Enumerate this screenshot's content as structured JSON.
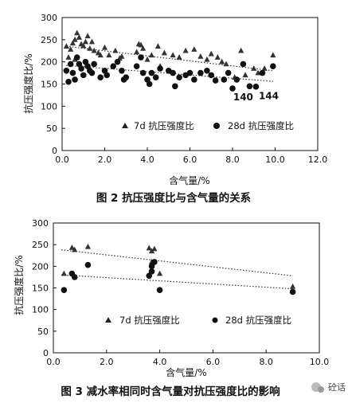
{
  "figure1": {
    "caption": "图 2   抗压强度比与含气量的关系",
    "chart_data": {
      "type": "scatter",
      "title": "",
      "xlabel": "含气量/%",
      "ylabel": "抗压强度比/%",
      "xlim": [
        0,
        12
      ],
      "ylim": [
        0,
        300
      ],
      "x_ticks": [
        "0.0",
        "2.0",
        "4.0",
        "6.0",
        "8.0",
        "10.0",
        "12.0"
      ],
      "y_ticks": [
        "0",
        "50",
        "100",
        "150",
        "200",
        "250",
        "300"
      ],
      "grid": false,
      "legend_position": "bottom-center",
      "series": [
        {
          "name": "7d 抗压强度比",
          "marker": "triangle",
          "points": [
            [
              0.2,
              235
            ],
            [
              0.4,
              228
            ],
            [
              0.5,
              242
            ],
            [
              0.6,
              250
            ],
            [
              0.7,
              265
            ],
            [
              0.8,
              255
            ],
            [
              0.9,
              240
            ],
            [
              1.0,
              236
            ],
            [
              1.1,
              245
            ],
            [
              1.2,
              258
            ],
            [
              1.3,
              230
            ],
            [
              1.4,
              245
            ],
            [
              1.5,
              225
            ],
            [
              1.7,
              220
            ],
            [
              2.0,
              232
            ],
            [
              2.2,
              215
            ],
            [
              2.5,
              225
            ],
            [
              2.7,
              208
            ],
            [
              2.8,
              212
            ],
            [
              3.5,
              222
            ],
            [
              3.6,
              240
            ],
            [
              3.7,
              238
            ],
            [
              3.8,
              230
            ],
            [
              4.0,
              205
            ],
            [
              4.2,
              215
            ],
            [
              4.5,
              235
            ],
            [
              4.8,
              220
            ],
            [
              5.2,
              215
            ],
            [
              5.5,
              210
            ],
            [
              5.8,
              225
            ],
            [
              6.2,
              228
            ],
            [
              6.5,
              212
            ],
            [
              6.8,
              205
            ],
            [
              7.0,
              218
            ],
            [
              7.3,
              210
            ],
            [
              7.5,
              200
            ],
            [
              7.7,
              195
            ],
            [
              8.1,
              165
            ],
            [
              8.4,
              225
            ],
            [
              8.6,
              170
            ],
            [
              9.0,
              185
            ],
            [
              9.2,
              175
            ],
            [
              9.5,
              185
            ],
            [
              9.9,
              215
            ],
            [
              0.3,
              210
            ],
            [
              0.6,
              205
            ],
            [
              1.8,
              215
            ],
            [
              4.6,
              190
            ]
          ]
        },
        {
          "name": "28d 抗压强度比",
          "marker": "circle",
          "points": [
            [
              0.2,
              180
            ],
            [
              0.3,
              155
            ],
            [
              0.4,
              195
            ],
            [
              0.5,
              175
            ],
            [
              0.6,
              160
            ],
            [
              0.7,
              210
            ],
            [
              0.8,
              195
            ],
            [
              0.9,
              185
            ],
            [
              1.0,
              170
            ],
            [
              1.1,
              200
            ],
            [
              1.2,
              190
            ],
            [
              1.3,
              180
            ],
            [
              1.4,
              175
            ],
            [
              1.5,
              195
            ],
            [
              1.8,
              165
            ],
            [
              2.0,
              180
            ],
            [
              2.1,
              170
            ],
            [
              2.4,
              190
            ],
            [
              2.6,
              200
            ],
            [
              2.8,
              180
            ],
            [
              3.0,
              165
            ],
            [
              3.5,
              190
            ],
            [
              3.7,
              210
            ],
            [
              3.8,
              175
            ],
            [
              4.0,
              160
            ],
            [
              4.2,
              175
            ],
            [
              4.4,
              165
            ],
            [
              4.6,
              185
            ],
            [
              5.0,
              180
            ],
            [
              5.2,
              175
            ],
            [
              5.5,
              165
            ],
            [
              5.8,
              170
            ],
            [
              6.0,
              175
            ],
            [
              6.2,
              160
            ],
            [
              6.5,
              175
            ],
            [
              6.8,
              180
            ],
            [
              7.0,
              170
            ],
            [
              7.2,
              158
            ],
            [
              7.6,
              160
            ],
            [
              7.8,
              175
            ],
            [
              8.0,
              140
            ],
            [
              8.2,
              160
            ],
            [
              8.5,
              195
            ],
            [
              8.8,
              145
            ],
            [
              9.1,
              144
            ],
            [
              9.4,
              175
            ],
            [
              9.9,
              190
            ],
            [
              4.1,
              150
            ],
            [
              5.3,
              145
            ],
            [
              2.9,
              160
            ]
          ]
        }
      ],
      "trendlines": [
        {
          "series": "7d 抗压强度比",
          "from": [
            0.2,
            235
          ],
          "to": [
            9.9,
            180
          ]
        },
        {
          "series": "28d 抗压强度比",
          "from": [
            0.2,
            192
          ],
          "to": [
            9.9,
            156
          ]
        }
      ],
      "annotations": [
        {
          "text": "140",
          "x": 8.5,
          "y": 135
        },
        {
          "text": "144",
          "x": 9.7,
          "y": 137
        }
      ]
    }
  },
  "figure2": {
    "caption": "图 3   减水率相同时含气量对抗压强度比的影响",
    "chart_data": {
      "type": "scatter",
      "title": "",
      "xlabel": "含气量/%",
      "ylabel": "抗压强度比/%",
      "xlim": [
        0,
        10
      ],
      "ylim": [
        0,
        300
      ],
      "x_ticks": [
        "0.0",
        "2.0",
        "4.0",
        "6.0",
        "8.0",
        "10.0"
      ],
      "y_ticks": [
        "0",
        "50",
        "100",
        "150",
        "200",
        "250",
        "300"
      ],
      "grid": false,
      "legend_position": "bottom-center",
      "series": [
        {
          "name": "7d 抗压强度比",
          "marker": "triangle",
          "points": [
            [
              0.4,
              183
            ],
            [
              0.7,
              243
            ],
            [
              0.8,
              238
            ],
            [
              1.3,
              245
            ],
            [
              3.6,
              242
            ],
            [
              3.7,
              235
            ],
            [
              3.8,
              240
            ],
            [
              3.7,
              210
            ],
            [
              4.0,
              183
            ],
            [
              9.0,
              153
            ]
          ]
        },
        {
          "name": "28d 抗压强度比",
          "marker": "circle",
          "points": [
            [
              0.4,
              145
            ],
            [
              0.7,
              183
            ],
            [
              0.8,
              175
            ],
            [
              1.3,
              203
            ],
            [
              3.6,
              178
            ],
            [
              3.7,
              200
            ],
            [
              3.8,
              210
            ],
            [
              3.7,
              188
            ],
            [
              4.0,
              145
            ],
            [
              9.0,
              141
            ]
          ]
        }
      ],
      "trendlines": [
        {
          "series": "7d 抗压强度比",
          "from": [
            0.3,
            238
          ],
          "to": [
            9.0,
            178
          ]
        },
        {
          "series": "28d 抗压强度比",
          "from": [
            0.3,
            180
          ],
          "to": [
            9.0,
            148
          ]
        }
      ]
    }
  },
  "watermark": {
    "text": "砼话"
  }
}
